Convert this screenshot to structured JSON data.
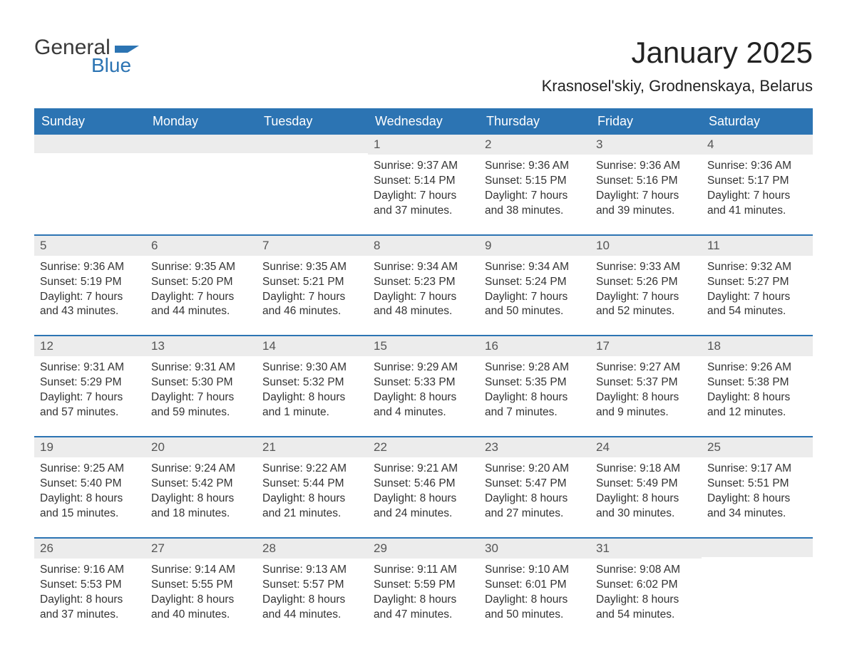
{
  "logo": {
    "general": "General",
    "blue": "Blue"
  },
  "title": "January 2025",
  "location": "Krasnosel'skiy, Grodnenskaya, Belarus",
  "colors": {
    "header_bg": "#2c74b3",
    "header_text": "#ffffff",
    "daynum_bg": "#ececec",
    "border": "#2c74b3",
    "body_text": "#333333"
  },
  "weekdays": [
    "Sunday",
    "Monday",
    "Tuesday",
    "Wednesday",
    "Thursday",
    "Friday",
    "Saturday"
  ],
  "weeks": [
    [
      {
        "n": "",
        "sr": "",
        "ss": "",
        "d1": "",
        "d2": ""
      },
      {
        "n": "",
        "sr": "",
        "ss": "",
        "d1": "",
        "d2": ""
      },
      {
        "n": "",
        "sr": "",
        "ss": "",
        "d1": "",
        "d2": ""
      },
      {
        "n": "1",
        "sr": "Sunrise: 9:37 AM",
        "ss": "Sunset: 5:14 PM",
        "d1": "Daylight: 7 hours",
        "d2": "and 37 minutes."
      },
      {
        "n": "2",
        "sr": "Sunrise: 9:36 AM",
        "ss": "Sunset: 5:15 PM",
        "d1": "Daylight: 7 hours",
        "d2": "and 38 minutes."
      },
      {
        "n": "3",
        "sr": "Sunrise: 9:36 AM",
        "ss": "Sunset: 5:16 PM",
        "d1": "Daylight: 7 hours",
        "d2": "and 39 minutes."
      },
      {
        "n": "4",
        "sr": "Sunrise: 9:36 AM",
        "ss": "Sunset: 5:17 PM",
        "d1": "Daylight: 7 hours",
        "d2": "and 41 minutes."
      }
    ],
    [
      {
        "n": "5",
        "sr": "Sunrise: 9:36 AM",
        "ss": "Sunset: 5:19 PM",
        "d1": "Daylight: 7 hours",
        "d2": "and 43 minutes."
      },
      {
        "n": "6",
        "sr": "Sunrise: 9:35 AM",
        "ss": "Sunset: 5:20 PM",
        "d1": "Daylight: 7 hours",
        "d2": "and 44 minutes."
      },
      {
        "n": "7",
        "sr": "Sunrise: 9:35 AM",
        "ss": "Sunset: 5:21 PM",
        "d1": "Daylight: 7 hours",
        "d2": "and 46 minutes."
      },
      {
        "n": "8",
        "sr": "Sunrise: 9:34 AM",
        "ss": "Sunset: 5:23 PM",
        "d1": "Daylight: 7 hours",
        "d2": "and 48 minutes."
      },
      {
        "n": "9",
        "sr": "Sunrise: 9:34 AM",
        "ss": "Sunset: 5:24 PM",
        "d1": "Daylight: 7 hours",
        "d2": "and 50 minutes."
      },
      {
        "n": "10",
        "sr": "Sunrise: 9:33 AM",
        "ss": "Sunset: 5:26 PM",
        "d1": "Daylight: 7 hours",
        "d2": "and 52 minutes."
      },
      {
        "n": "11",
        "sr": "Sunrise: 9:32 AM",
        "ss": "Sunset: 5:27 PM",
        "d1": "Daylight: 7 hours",
        "d2": "and 54 minutes."
      }
    ],
    [
      {
        "n": "12",
        "sr": "Sunrise: 9:31 AM",
        "ss": "Sunset: 5:29 PM",
        "d1": "Daylight: 7 hours",
        "d2": "and 57 minutes."
      },
      {
        "n": "13",
        "sr": "Sunrise: 9:31 AM",
        "ss": "Sunset: 5:30 PM",
        "d1": "Daylight: 7 hours",
        "d2": "and 59 minutes."
      },
      {
        "n": "14",
        "sr": "Sunrise: 9:30 AM",
        "ss": "Sunset: 5:32 PM",
        "d1": "Daylight: 8 hours",
        "d2": "and 1 minute."
      },
      {
        "n": "15",
        "sr": "Sunrise: 9:29 AM",
        "ss": "Sunset: 5:33 PM",
        "d1": "Daylight: 8 hours",
        "d2": "and 4 minutes."
      },
      {
        "n": "16",
        "sr": "Sunrise: 9:28 AM",
        "ss": "Sunset: 5:35 PM",
        "d1": "Daylight: 8 hours",
        "d2": "and 7 minutes."
      },
      {
        "n": "17",
        "sr": "Sunrise: 9:27 AM",
        "ss": "Sunset: 5:37 PM",
        "d1": "Daylight: 8 hours",
        "d2": "and 9 minutes."
      },
      {
        "n": "18",
        "sr": "Sunrise: 9:26 AM",
        "ss": "Sunset: 5:38 PM",
        "d1": "Daylight: 8 hours",
        "d2": "and 12 minutes."
      }
    ],
    [
      {
        "n": "19",
        "sr": "Sunrise: 9:25 AM",
        "ss": "Sunset: 5:40 PM",
        "d1": "Daylight: 8 hours",
        "d2": "and 15 minutes."
      },
      {
        "n": "20",
        "sr": "Sunrise: 9:24 AM",
        "ss": "Sunset: 5:42 PM",
        "d1": "Daylight: 8 hours",
        "d2": "and 18 minutes."
      },
      {
        "n": "21",
        "sr": "Sunrise: 9:22 AM",
        "ss": "Sunset: 5:44 PM",
        "d1": "Daylight: 8 hours",
        "d2": "and 21 minutes."
      },
      {
        "n": "22",
        "sr": "Sunrise: 9:21 AM",
        "ss": "Sunset: 5:46 PM",
        "d1": "Daylight: 8 hours",
        "d2": "and 24 minutes."
      },
      {
        "n": "23",
        "sr": "Sunrise: 9:20 AM",
        "ss": "Sunset: 5:47 PM",
        "d1": "Daylight: 8 hours",
        "d2": "and 27 minutes."
      },
      {
        "n": "24",
        "sr": "Sunrise: 9:18 AM",
        "ss": "Sunset: 5:49 PM",
        "d1": "Daylight: 8 hours",
        "d2": "and 30 minutes."
      },
      {
        "n": "25",
        "sr": "Sunrise: 9:17 AM",
        "ss": "Sunset: 5:51 PM",
        "d1": "Daylight: 8 hours",
        "d2": "and 34 minutes."
      }
    ],
    [
      {
        "n": "26",
        "sr": "Sunrise: 9:16 AM",
        "ss": "Sunset: 5:53 PM",
        "d1": "Daylight: 8 hours",
        "d2": "and 37 minutes."
      },
      {
        "n": "27",
        "sr": "Sunrise: 9:14 AM",
        "ss": "Sunset: 5:55 PM",
        "d1": "Daylight: 8 hours",
        "d2": "and 40 minutes."
      },
      {
        "n": "28",
        "sr": "Sunrise: 9:13 AM",
        "ss": "Sunset: 5:57 PM",
        "d1": "Daylight: 8 hours",
        "d2": "and 44 minutes."
      },
      {
        "n": "29",
        "sr": "Sunrise: 9:11 AM",
        "ss": "Sunset: 5:59 PM",
        "d1": "Daylight: 8 hours",
        "d2": "and 47 minutes."
      },
      {
        "n": "30",
        "sr": "Sunrise: 9:10 AM",
        "ss": "Sunset: 6:01 PM",
        "d1": "Daylight: 8 hours",
        "d2": "and 50 minutes."
      },
      {
        "n": "31",
        "sr": "Sunrise: 9:08 AM",
        "ss": "Sunset: 6:02 PM",
        "d1": "Daylight: 8 hours",
        "d2": "and 54 minutes."
      },
      {
        "n": "",
        "sr": "",
        "ss": "",
        "d1": "",
        "d2": ""
      }
    ]
  ]
}
